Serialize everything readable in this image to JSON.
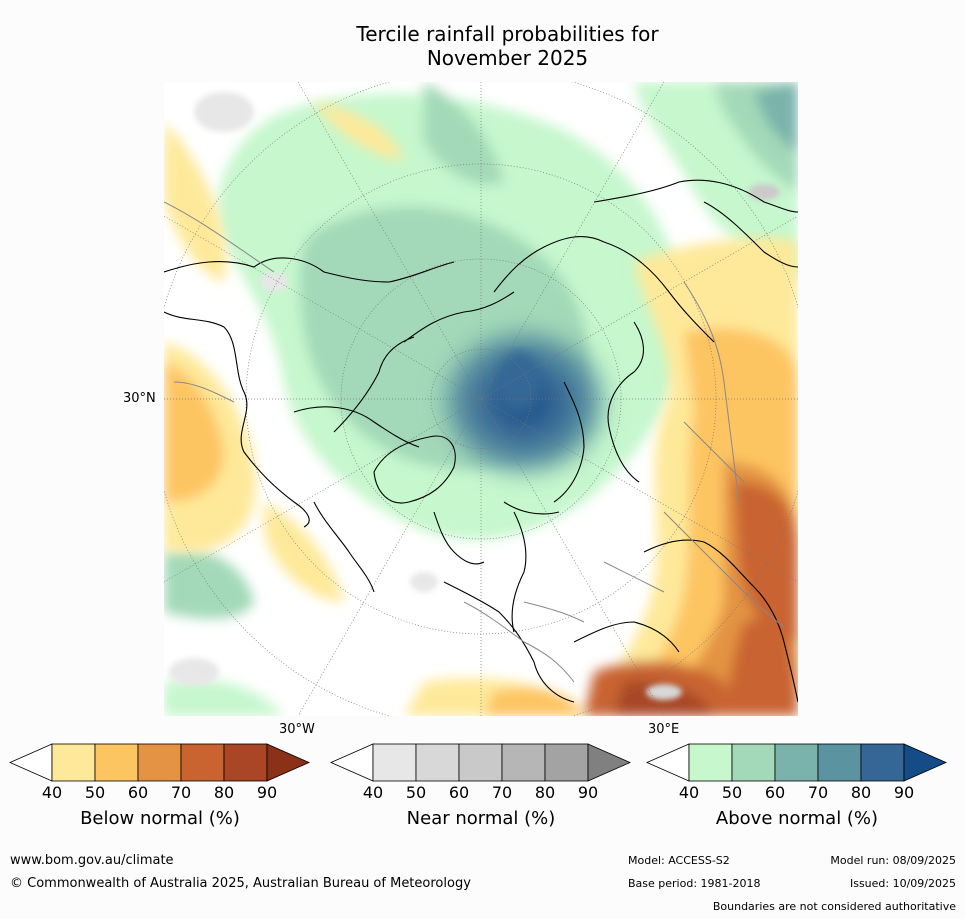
{
  "title_line1": "Tercile rainfall probabilities for",
  "title_line2": "November 2025",
  "map": {
    "projection": "north-polar-stereographic",
    "lat_label": "30°N",
    "lon_labels": {
      "west": "30°W",
      "east": "30°E"
    }
  },
  "legend": {
    "ticks": [
      "40",
      "50",
      "60",
      "70",
      "80",
      "90"
    ],
    "below": {
      "title": "Below normal (%)",
      "colors": [
        "#ffffff",
        "#fee99a",
        "#fdc462",
        "#e39343",
        "#c96430",
        "#a84626",
        "#8b3118"
      ]
    },
    "near": {
      "title": "Near normal (%)",
      "colors": [
        "#ffffff",
        "#e7e7e7",
        "#d8d8d8",
        "#c9c9c9",
        "#b6b6b6",
        "#a3a3a3",
        "#808080"
      ]
    },
    "above": {
      "title": "Above normal (%)",
      "colors": [
        "#ffffff",
        "#c6f7cd",
        "#a3d9b8",
        "#7ab3ab",
        "#5b93a1",
        "#356796",
        "#154b86"
      ]
    }
  },
  "footer": {
    "website": "www.bom.gov.au/climate",
    "copyright": "© Commonwealth of Australia 2025, Australian Bureau of Meteorology",
    "model": "Model: ACCESS-S2",
    "base_period": "Base period: 1981-2018",
    "model_run": "Model run: 08/09/2025",
    "issued": "Issued: 10/09/2025",
    "disclaimer": "Boundaries are not considered authoritative"
  }
}
